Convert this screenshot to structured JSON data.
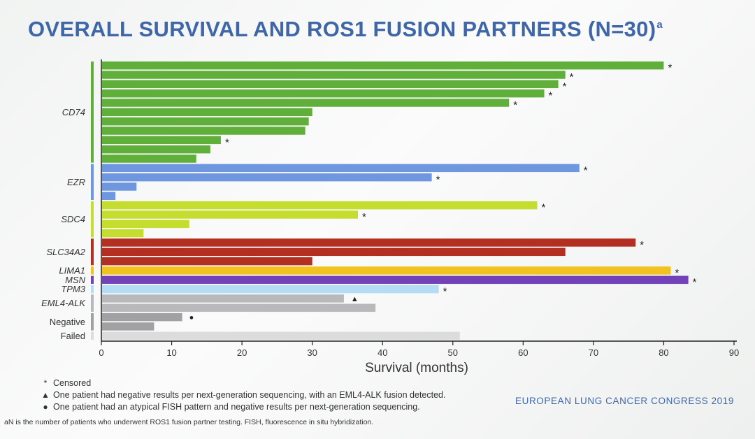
{
  "title": "OVERALL SURVIVAL AND ROS1 FUSION PARTNERS (N=30)",
  "title_sup": "a",
  "chart_data": {
    "type": "bar",
    "orientation": "horizontal",
    "xlabel": "Survival (months)",
    "xlim": [
      0,
      90
    ],
    "xticks": [
      "0",
      "10",
      "20",
      "30",
      "40",
      "50",
      "60",
      "70",
      "80",
      "90"
    ],
    "grid": false,
    "groups": [
      {
        "name": "CD74",
        "color": "#5faf3a",
        "bars": [
          {
            "value": 80,
            "marker": "*"
          },
          {
            "value": 66,
            "marker": "*"
          },
          {
            "value": 65,
            "marker": "*"
          },
          {
            "value": 63,
            "marker": "*"
          },
          {
            "value": 58,
            "marker": "*"
          },
          {
            "value": 30,
            "marker": ""
          },
          {
            "value": 29.5,
            "marker": ""
          },
          {
            "value": 29,
            "marker": ""
          },
          {
            "value": 17,
            "marker": "*"
          },
          {
            "value": 15.5,
            "marker": ""
          },
          {
            "value": 13.5,
            "marker": ""
          }
        ]
      },
      {
        "name": "EZR",
        "color": "#6f97e0",
        "bars": [
          {
            "value": 68,
            "marker": "*"
          },
          {
            "value": 47,
            "marker": "*"
          },
          {
            "value": 5,
            "marker": ""
          },
          {
            "value": 2,
            "marker": ""
          }
        ]
      },
      {
        "name": "SDC4",
        "color": "#c4dd2e",
        "bars": [
          {
            "value": 62,
            "marker": "*"
          },
          {
            "value": 36.5,
            "marker": "*"
          },
          {
            "value": 12.5,
            "marker": ""
          },
          {
            "value": 6,
            "marker": ""
          }
        ]
      },
      {
        "name": "SLC34A2",
        "color": "#b22f22",
        "bars": [
          {
            "value": 76,
            "marker": "*"
          },
          {
            "value": 66,
            "marker": ""
          },
          {
            "value": 30,
            "marker": ""
          }
        ]
      },
      {
        "name": "LIMA1",
        "color": "#f2c21e",
        "bars": [
          {
            "value": 81,
            "marker": "*"
          }
        ]
      },
      {
        "name": "MSN",
        "color": "#7442b8",
        "bars": [
          {
            "value": 83.5,
            "marker": "*"
          }
        ]
      },
      {
        "name": "TPM3",
        "color": "#b5dcf5",
        "bars": [
          {
            "value": 48,
            "marker": "*"
          }
        ]
      },
      {
        "name": "EML4-ALK",
        "color": "#b9b9bb",
        "bars": [
          {
            "value": 34.5,
            "marker": "▲"
          },
          {
            "value": 39,
            "marker": ""
          }
        ]
      },
      {
        "name": "Negative",
        "color": "#a1a1a3",
        "bars": [
          {
            "value": 11.5,
            "marker": "●"
          },
          {
            "value": 7.5,
            "marker": ""
          }
        ]
      },
      {
        "name": "Failed",
        "color": "#dcdcdc",
        "bars": [
          {
            "value": 51,
            "marker": ""
          }
        ]
      }
    ]
  },
  "legend": [
    {
      "symbol": "*",
      "text": "Censored"
    },
    {
      "symbol": "▲",
      "text": "One patient had negative results per next-generation sequencing, with an EML4-ALK fusion detected."
    },
    {
      "symbol": "●",
      "text": "One patient had an atypical FISH pattern and negative results per next-generation sequencing."
    }
  ],
  "footnote": "aN is the number of patients who underwent ROS1 fusion partner testing. FISH, fluorescence in situ hybridization.",
  "congress": "EUROPEAN LUNG CANCER CONGRESS 2019"
}
